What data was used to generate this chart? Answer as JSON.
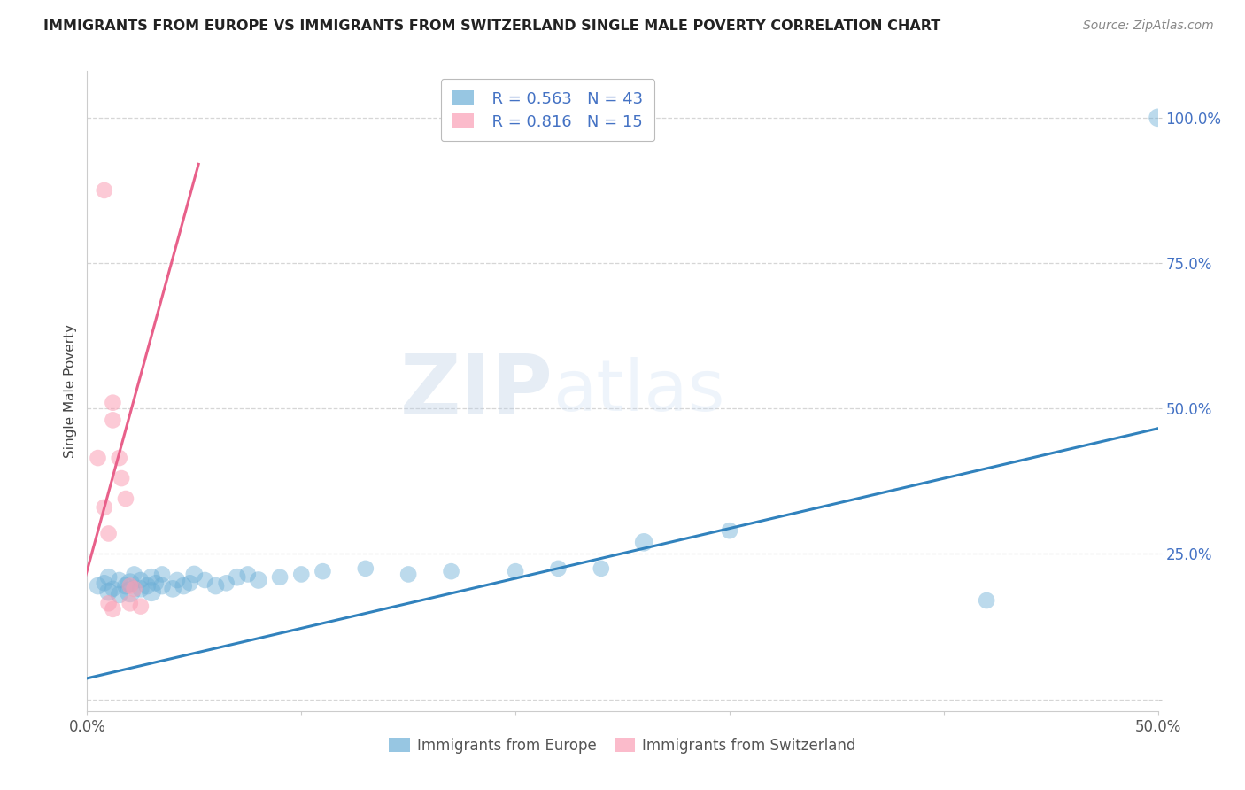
{
  "title": "IMMIGRANTS FROM EUROPE VS IMMIGRANTS FROM SWITZERLAND SINGLE MALE POVERTY CORRELATION CHART",
  "source": "Source: ZipAtlas.com",
  "ylabel": "Single Male Poverty",
  "xlim": [
    0,
    0.5
  ],
  "ylim": [
    -0.02,
    1.08
  ],
  "blue_R": 0.563,
  "blue_N": 43,
  "pink_R": 0.816,
  "pink_N": 15,
  "blue_color": "#6baed6",
  "pink_color": "#fa9fb5",
  "blue_line_color": "#3182bd",
  "pink_line_color": "#e8608a",
  "legend_blue_label": "Immigrants from Europe",
  "legend_pink_label": "Immigrants from Switzerland",
  "watermark_zip": "ZIP",
  "watermark_atlas": "atlas",
  "blue_scatter_x": [
    0.005,
    0.008,
    0.01,
    0.01,
    0.012,
    0.015,
    0.015,
    0.018,
    0.02,
    0.02,
    0.022,
    0.025,
    0.025,
    0.028,
    0.03,
    0.03,
    0.032,
    0.035,
    0.035,
    0.04,
    0.042,
    0.045,
    0.048,
    0.05,
    0.055,
    0.06,
    0.065,
    0.07,
    0.075,
    0.08,
    0.09,
    0.1,
    0.11,
    0.13,
    0.15,
    0.17,
    0.2,
    0.22,
    0.24,
    0.26,
    0.3,
    0.42,
    0.5
  ],
  "blue_scatter_y": [
    0.195,
    0.2,
    0.185,
    0.21,
    0.19,
    0.18,
    0.205,
    0.195,
    0.185,
    0.2,
    0.215,
    0.19,
    0.205,
    0.195,
    0.185,
    0.21,
    0.2,
    0.195,
    0.215,
    0.19,
    0.205,
    0.195,
    0.2,
    0.215,
    0.205,
    0.195,
    0.2,
    0.21,
    0.215,
    0.205,
    0.21,
    0.215,
    0.22,
    0.225,
    0.215,
    0.22,
    0.22,
    0.225,
    0.225,
    0.27,
    0.29,
    0.17,
    1.0
  ],
  "blue_scatter_sizes": [
    200,
    180,
    220,
    200,
    180,
    200,
    180,
    200,
    300,
    250,
    180,
    200,
    180,
    200,
    250,
    200,
    180,
    200,
    180,
    200,
    180,
    200,
    180,
    200,
    180,
    200,
    180,
    200,
    180,
    200,
    180,
    180,
    180,
    180,
    180,
    180,
    180,
    180,
    180,
    220,
    180,
    180,
    220
  ],
  "pink_scatter_x": [
    0.005,
    0.008,
    0.01,
    0.012,
    0.012,
    0.015,
    0.016,
    0.018,
    0.02,
    0.02,
    0.022,
    0.025,
    0.008,
    0.01,
    0.012
  ],
  "pink_scatter_y": [
    0.415,
    0.33,
    0.285,
    0.48,
    0.51,
    0.415,
    0.38,
    0.345,
    0.195,
    0.165,
    0.19,
    0.16,
    0.875,
    0.165,
    0.155
  ],
  "pink_scatter_sizes": [
    180,
    180,
    180,
    180,
    180,
    180,
    180,
    180,
    180,
    180,
    180,
    180,
    180,
    180,
    180
  ],
  "blue_line_x": [
    -0.005,
    0.505
  ],
  "blue_line_y": [
    0.032,
    0.47
  ],
  "pink_line_x": [
    -0.002,
    0.052
  ],
  "pink_line_y": [
    0.195,
    0.92
  ]
}
